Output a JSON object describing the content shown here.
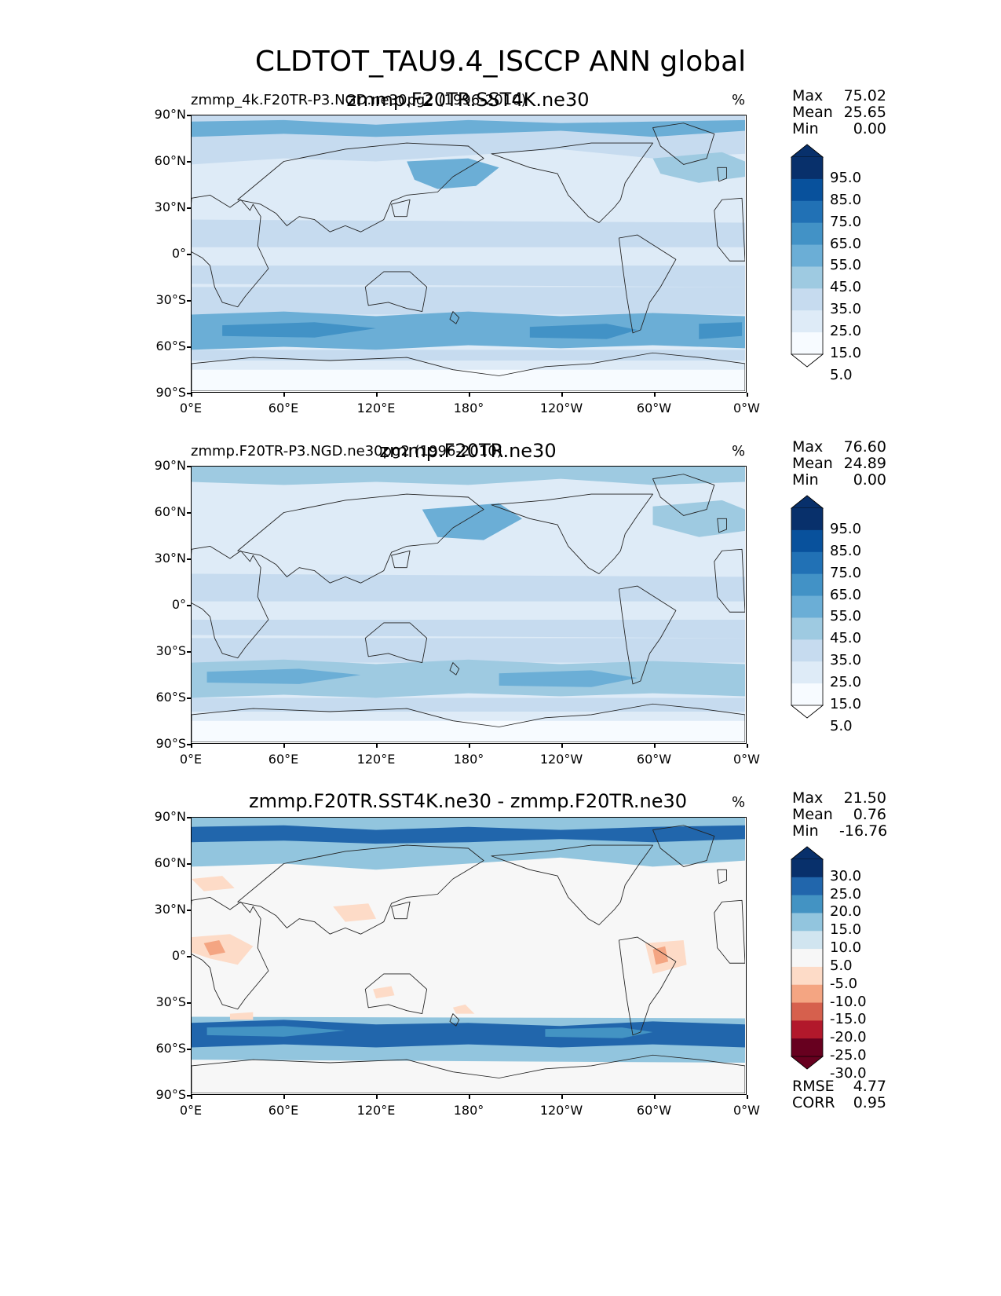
{
  "title": "CLDTOT_TAU9.4_ISCCP ANN global",
  "chart_data": [
    {
      "type": "heatmap",
      "name": "test",
      "left_title": "zmmp_4k.F20TR-P3.NGD.ne30pg2 (1996-2010)",
      "center_title": "zmmp.F20TR.SST4K.ne30",
      "units": "%",
      "stats": [
        {
          "label": "Max",
          "value": "75.02"
        },
        {
          "label": "Mean",
          "value": "25.65"
        },
        {
          "label": "Min",
          "value": "0.00"
        }
      ],
      "colorbar": {
        "levels": [
          "95.0",
          "85.0",
          "75.0",
          "65.0",
          "55.0",
          "45.0",
          "35.0",
          "25.0",
          "15.0",
          "5.0"
        ],
        "colors": [
          "#08306b",
          "#08519c",
          "#2171b5",
          "#4292c6",
          "#6baed6",
          "#9ecae1",
          "#c6dbef",
          "#deebf7",
          "#f7fbff"
        ]
      },
      "xticks": [
        "0°E",
        "60°E",
        "120°E",
        "180°",
        "120°W",
        "60°W",
        "0°W"
      ],
      "yticks": [
        "90°N",
        "60°N",
        "30°N",
        "0°",
        "30°S",
        "60°S",
        "90°S"
      ],
      "xlim": [
        0,
        360
      ],
      "ylim": [
        -90,
        90
      ]
    },
    {
      "type": "heatmap",
      "name": "reference",
      "left_title": "zmmp.F20TR-P3.NGD.ne30pg2 (1996-2010)",
      "center_title": "zmmp.F20TR.ne30",
      "units": "%",
      "stats": [
        {
          "label": "Max",
          "value": "76.60"
        },
        {
          "label": "Mean",
          "value": "24.89"
        },
        {
          "label": "Min",
          "value": "0.00"
        }
      ],
      "colorbar": {
        "levels": [
          "95.0",
          "85.0",
          "75.0",
          "65.0",
          "55.0",
          "45.0",
          "35.0",
          "25.0",
          "15.0",
          "5.0"
        ],
        "colors": [
          "#08306b",
          "#08519c",
          "#2171b5",
          "#4292c6",
          "#6baed6",
          "#9ecae1",
          "#c6dbef",
          "#deebf7",
          "#f7fbff"
        ]
      },
      "xticks": [
        "0°E",
        "60°E",
        "120°E",
        "180°",
        "120°W",
        "60°W",
        "0°W"
      ],
      "yticks": [
        "90°N",
        "60°N",
        "30°N",
        "0°",
        "30°S",
        "60°S",
        "90°S"
      ],
      "xlim": [
        0,
        360
      ],
      "ylim": [
        -90,
        90
      ]
    },
    {
      "type": "heatmap",
      "name": "difference",
      "left_title": "",
      "center_title": "zmmp.F20TR.SST4K.ne30 - zmmp.F20TR.ne30",
      "units": "%",
      "stats": [
        {
          "label": "Max",
          "value": "21.50"
        },
        {
          "label": "Mean",
          "value": "0.76"
        },
        {
          "label": "Min",
          "value": "-16.76"
        }
      ],
      "colorbar": {
        "levels": [
          "30.0",
          "25.0",
          "20.0",
          "15.0",
          "10.0",
          "5.0",
          "-5.0",
          "-10.0",
          "-15.0",
          "-20.0",
          "-25.0",
          "-30.0"
        ],
        "colors": [
          "#08306b",
          "#2166ac",
          "#4393c3",
          "#92c5de",
          "#d1e5f0",
          "#f7f7f7",
          "#fddbc7",
          "#f4a582",
          "#d6604d",
          "#b2182b",
          "#67001f"
        ]
      },
      "xticks": [
        "0°E",
        "60°E",
        "120°E",
        "180°",
        "120°W",
        "60°W",
        "0°W"
      ],
      "yticks": [
        "90°N",
        "60°N",
        "30°N",
        "0°",
        "30°S",
        "60°S",
        "90°S"
      ],
      "xlim": [
        0,
        360
      ],
      "ylim": [
        -90,
        90
      ],
      "metrics": [
        {
          "label": "RMSE",
          "value": "4.77"
        },
        {
          "label": "CORR",
          "value": "0.95"
        }
      ]
    }
  ]
}
